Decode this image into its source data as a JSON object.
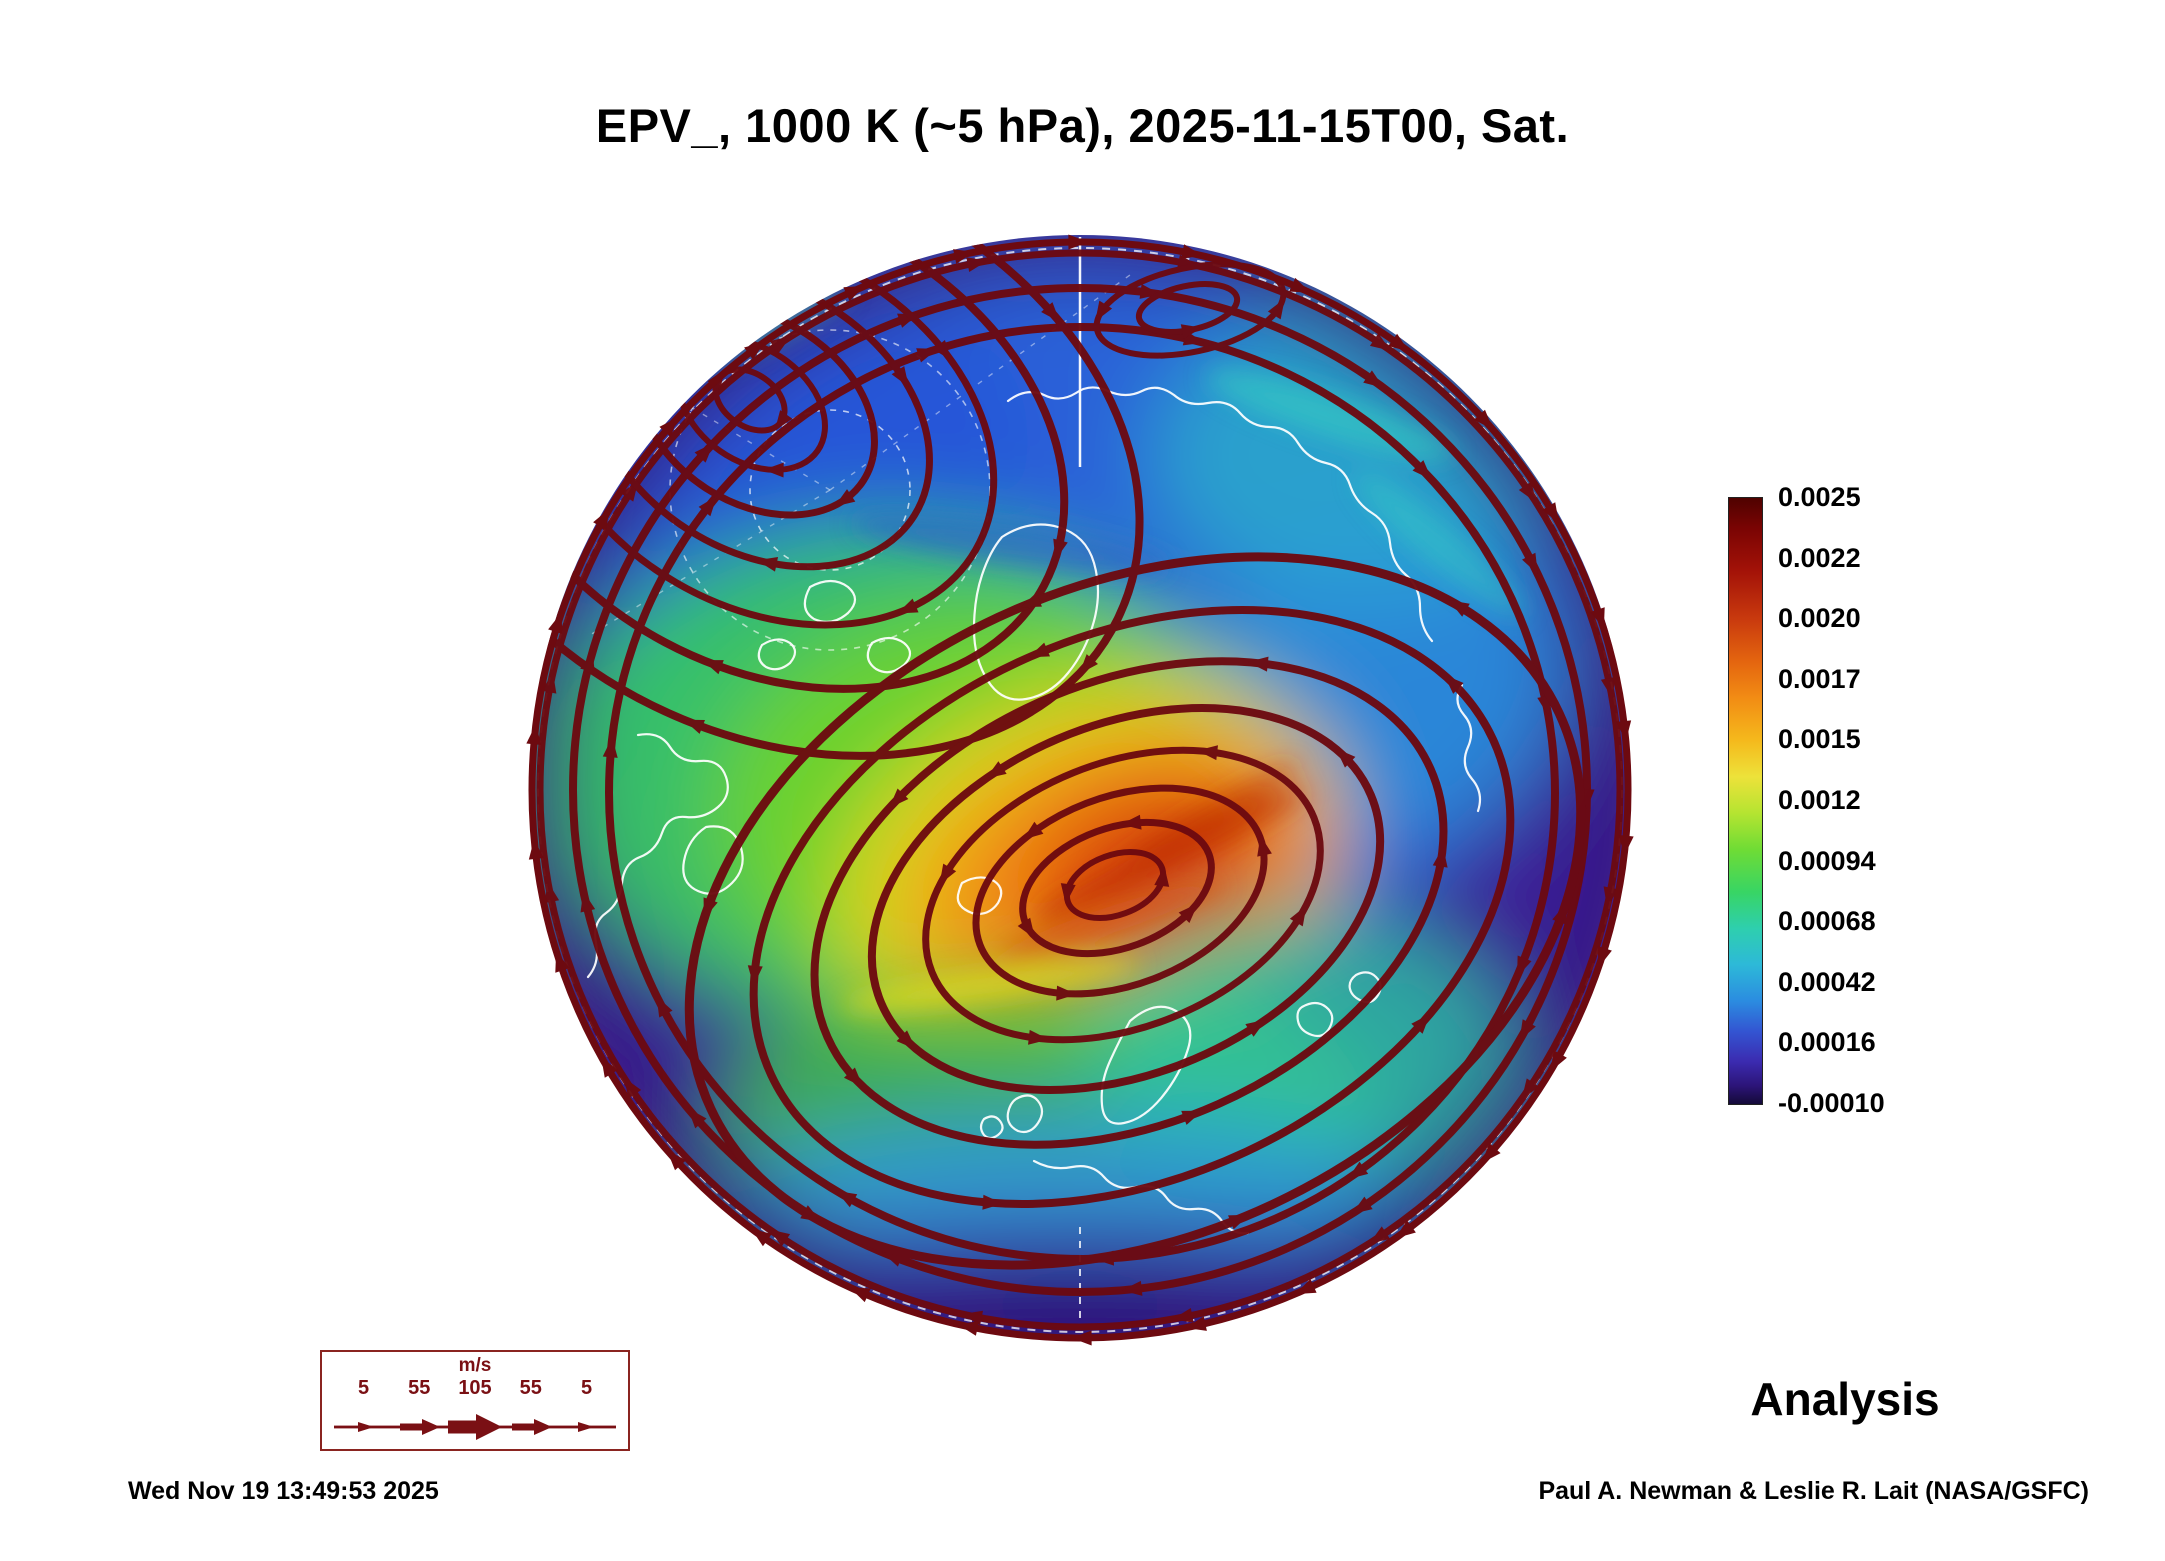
{
  "title": "EPV_, 1000 K (~5 hPa), 2025-11-15T00, Sat.",
  "annotations": {
    "analysis": "Analysis"
  },
  "footer": {
    "timestamp": "Wed Nov 19 13:49:53 2025",
    "credit": "Paul A. Newman & Leslie R. Lait (NASA/GSFC)"
  },
  "colorbar": {
    "tick_labels": [
      "0.0025",
      "0.0022",
      "0.0020",
      "0.0017",
      "0.0015",
      "0.0012",
      "0.00094",
      "0.00068",
      "0.00042",
      "0.00016",
      "-0.00010"
    ]
  },
  "wind_legend": {
    "unit": "m/s",
    "tick_labels": [
      "5",
      "55",
      "105",
      "55",
      "5"
    ]
  },
  "chart_data": {
    "type": "heatmap",
    "title": "EPV_, 1000 K (~5 hPa), 2025-11-15T00, Sat.",
    "quantity": "EPV_",
    "level": "1000 K (~5 hPa)",
    "datetime": "2025-11-15T00",
    "day": "Sat.",
    "mode": "Analysis",
    "colorbar_ticks": [
      0.0025,
      0.0022,
      0.002,
      0.0017,
      0.0015,
      0.0012,
      0.00094,
      0.00068,
      0.00042,
      0.00016,
      -0.0001
    ],
    "colorbar_range": [
      -0.0001,
      0.0025
    ],
    "wind_speed_scale_ms": [
      5,
      55,
      105,
      55,
      5
    ],
    "wind_unit": "m/s",
    "generated": "Wed Nov 19 13:49:53 2025",
    "credit": "Paul A. Newman & Leslie R. Lait (NASA/GSFC)"
  }
}
